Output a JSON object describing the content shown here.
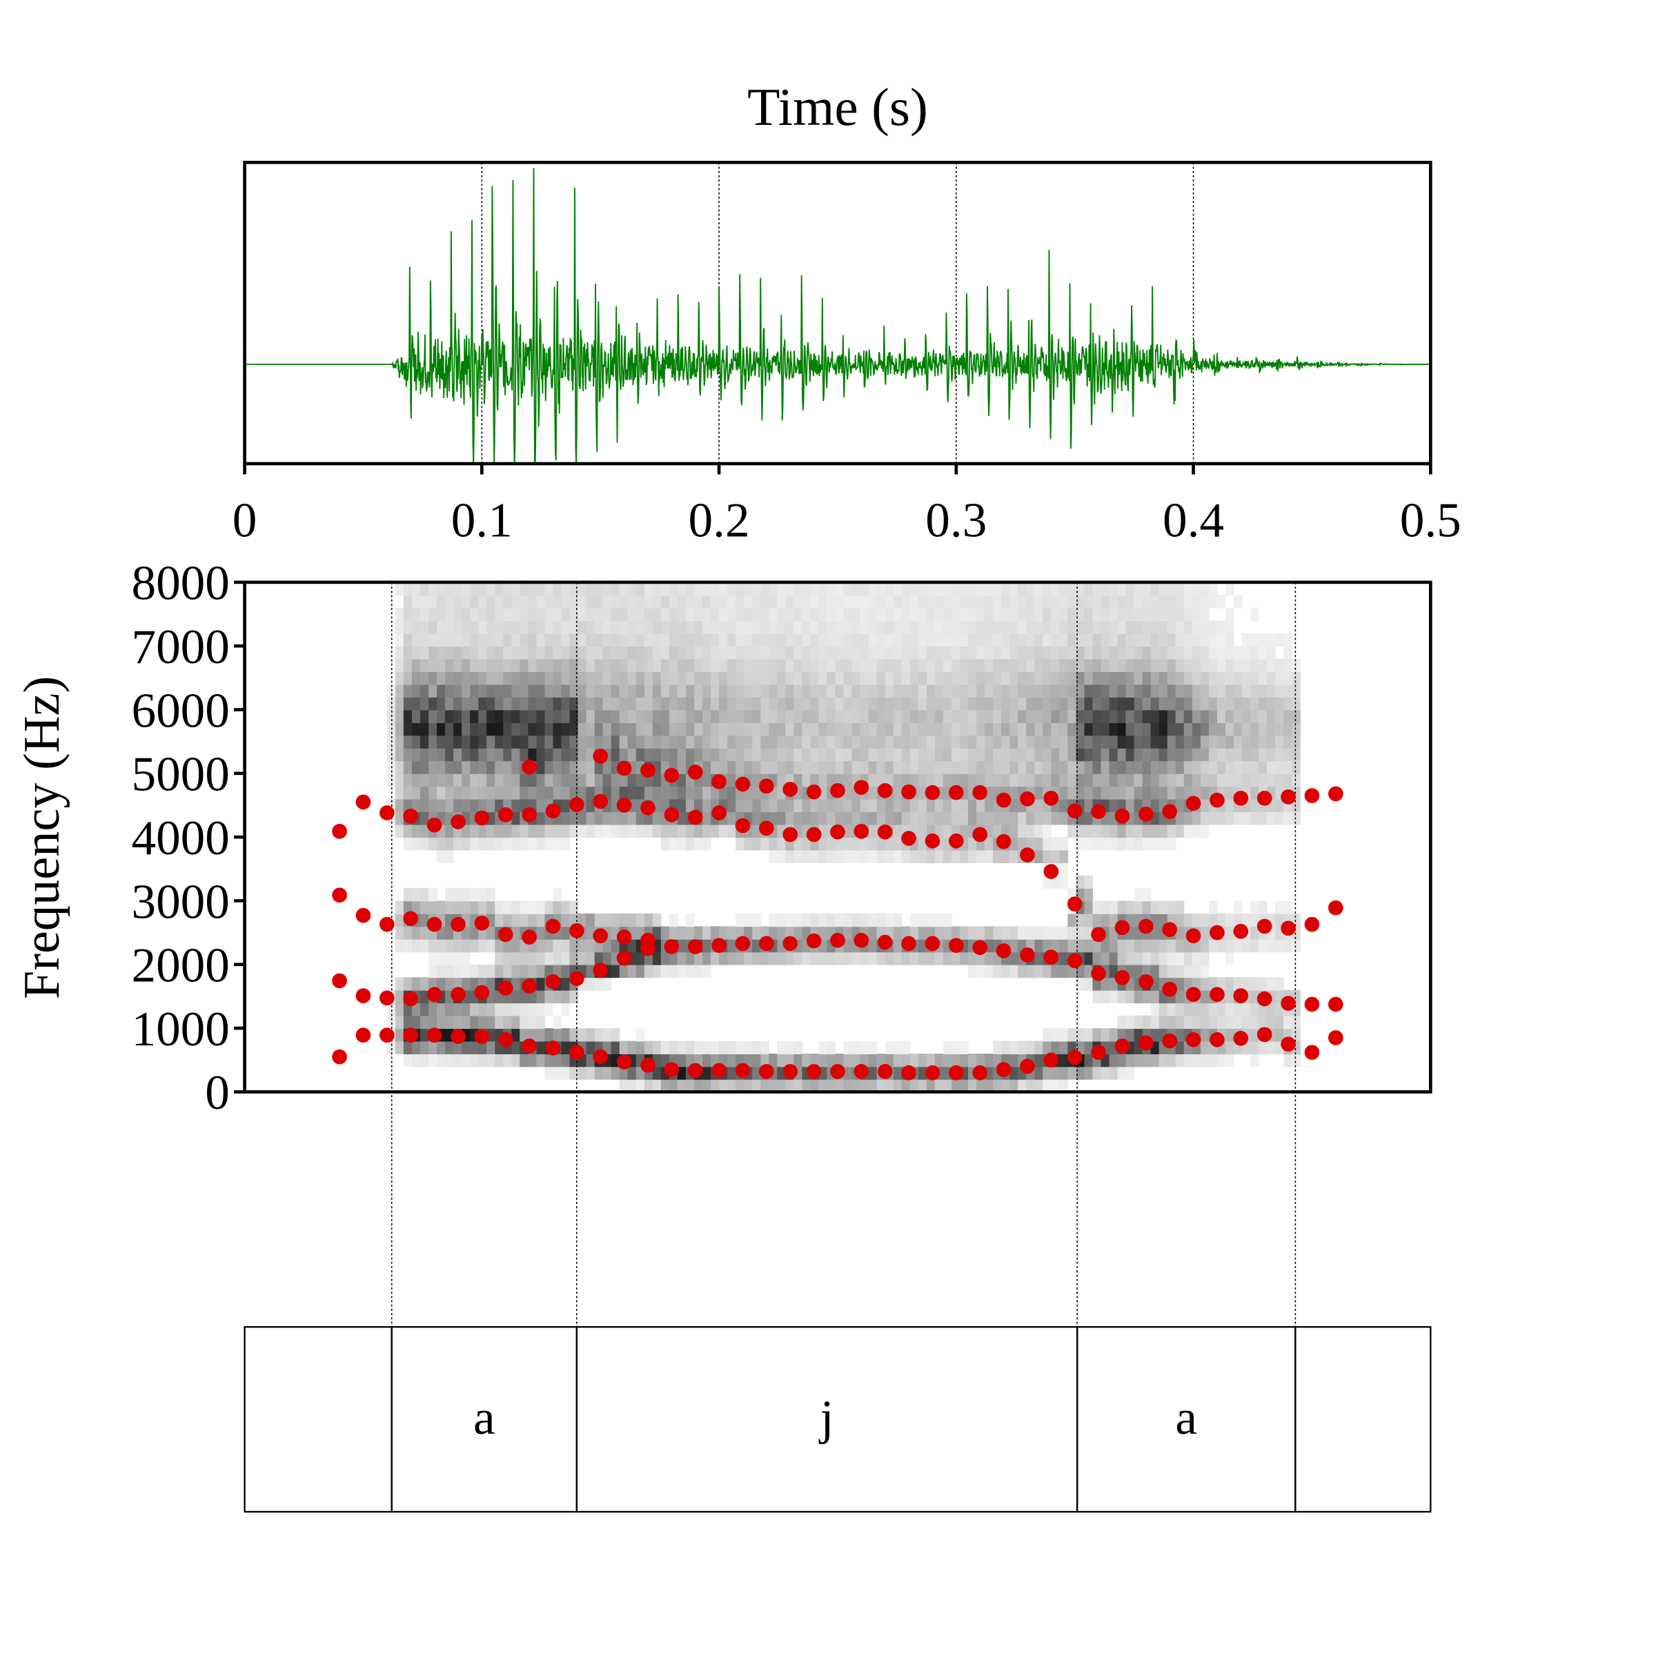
{
  "chart_data": [
    {
      "type": "line",
      "panel": "waveform",
      "title": "Time (s)",
      "xlim": [
        0,
        0.5
      ],
      "xticks": [
        "0",
        "0.1",
        "0.2",
        "0.3",
        "0.4",
        "0.5"
      ],
      "xtick_values": [
        0,
        0.1,
        0.2,
        0.3,
        0.4,
        0.5
      ],
      "color": "#008000",
      "envelope": {
        "t": [
          0,
          0.062,
          0.066,
          0.075,
          0.09,
          0.115,
          0.15,
          0.2,
          0.25,
          0.3,
          0.33,
          0.35,
          0.375,
          0.39,
          0.41,
          0.44,
          0.46,
          0.48,
          0.5
        ],
        "amp": [
          0,
          0,
          0.55,
          0.85,
          1.0,
          0.95,
          0.7,
          0.42,
          0.32,
          0.34,
          0.42,
          0.62,
          0.75,
          0.45,
          0.15,
          0.1,
          0.03,
          0.01,
          0
        ]
      }
    },
    {
      "type": "scatter",
      "panel": "spectrogram",
      "ylabel": "Frequency (Hz)",
      "ylim": [
        0,
        8000
      ],
      "yticks": [
        "0",
        "1000",
        "2000",
        "3000",
        "4000",
        "5000",
        "6000",
        "7000",
        "8000"
      ],
      "ytick_values": [
        0,
        1000,
        2000,
        3000,
        4000,
        5000,
        6000,
        7000,
        8000
      ],
      "xlim": [
        0,
        0.5
      ],
      "dot_color": "#dd0000",
      "frame_start": 0.04,
      "frame_step": 0.01,
      "formants": [
        {
          "name": "F1",
          "values": [
            550,
            890,
            890,
            890,
            890,
            870,
            870,
            820,
            720,
            690,
            620,
            550,
            470,
            420,
            350,
            335,
            335,
            335,
            320,
            320,
            320,
            320,
            320,
            320,
            300,
            300,
            300,
            300,
            350,
            400,
            500,
            540,
            620,
            720,
            770,
            800,
            820,
            820,
            840,
            900,
            750,
            620,
            850
          ]
        },
        {
          "name": "F2",
          "values": [
            1745,
            1510,
            1475,
            1460,
            1530,
            1530,
            1560,
            1630,
            1660,
            1730,
            1780,
            1910,
            2100,
            2250,
            2280,
            2280,
            2300,
            2330,
            2330,
            2330,
            2370,
            2380,
            2380,
            2350,
            2330,
            2330,
            2300,
            2265,
            2215,
            2150,
            2115,
            2060,
            1860,
            1795,
            1730,
            1610,
            1530,
            1530,
            1510,
            1460,
            1390,
            1375,
            1375
          ]
        },
        {
          "name": "F3",
          "values": [
            3090,
            2770,
            2630,
            2720,
            2630,
            2630,
            2650,
            2470,
            2430,
            2600,
            2530,
            2450,
            2430,
            2380,
            null,
            null,
            null,
            null,
            null,
            null,
            null,
            null,
            null,
            null,
            null,
            null,
            null,
            null,
            null,
            null,
            null,
            2950,
            2470,
            2580,
            2600,
            2550,
            2450,
            2500,
            2520,
            2600,
            2570,
            2630,
            2890
          ]
        },
        {
          "name": "F4",
          "values": [
            4090,
            4550,
            4380,
            4330,
            4190,
            4240,
            4300,
            4350,
            4350,
            4410,
            4510,
            4560,
            4500,
            4460,
            4350,
            4310,
            4380,
            4180,
            4140,
            4040,
            4040,
            4080,
            4090,
            4080,
            3980,
            3940,
            3940,
            4040,
            3930,
            3720,
            3460,
            4410,
            4400,
            4330,
            4360,
            4400,
            4530,
            4580,
            4610,
            4610,
            4630,
            4650,
            4680
          ]
        },
        {
          "name": "F5",
          "values": [
            null,
            null,
            null,
            null,
            null,
            null,
            null,
            null,
            5100,
            null,
            null,
            5270,
            5080,
            5050,
            4970,
            5020,
            4870,
            4830,
            4800,
            4750,
            4710,
            4730,
            4780,
            4730,
            4710,
            4700,
            4700,
            4700,
            4580,
            4600,
            4610,
            null,
            null,
            null,
            null,
            null,
            null,
            null,
            null,
            null,
            null,
            null,
            null
          ]
        }
      ]
    },
    {
      "type": "table",
      "panel": "textgrid",
      "intervals": [
        {
          "start": 0,
          "end": 0.062,
          "label": ""
        },
        {
          "start": 0.062,
          "end": 0.14,
          "label": "a"
        },
        {
          "start": 0.14,
          "end": 0.351,
          "label": "j"
        },
        {
          "start": 0.351,
          "end": 0.443,
          "label": "a"
        },
        {
          "start": 0.443,
          "end": 0.5,
          "label": ""
        }
      ]
    }
  ]
}
